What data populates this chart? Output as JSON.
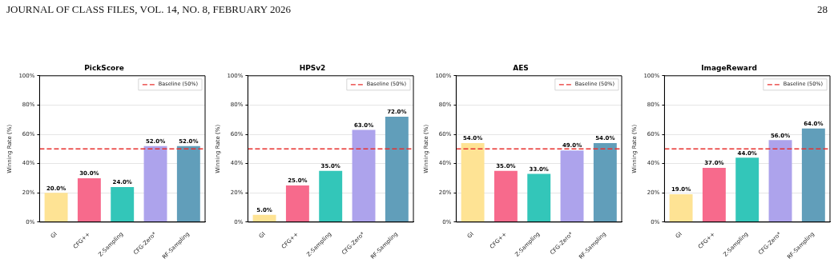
{
  "chart_data": [
    {
      "type": "bar",
      "title": "PickScore",
      "ylabel": "Winning Rate (%)",
      "annotations": [
        "JOURNAL OF CLASS FILES, VOL. 14, NO. 8, FEBRUARY 2026",
        "28"
      ],
      "categories": [
        "GI",
        "CFG++",
        "Z-Sampling",
        "CFG-Zero*",
        "RF-Sampling"
      ],
      "values": [
        20,
        30,
        24,
        52,
        52
      ],
      "value_labels": [
        "20.0%",
        "30.0%",
        "24.0%",
        "52.0%",
        "52.0%"
      ],
      "colors": [
        "#fee394",
        "#f76a8c",
        "#33c6b9",
        "#ada3ec",
        "#619eba"
      ],
      "ylim": [
        0,
        100
      ],
      "yticks": [
        {
          "value": 0,
          "label": "0%"
        },
        {
          "value": 20,
          "label": "20%"
        },
        {
          "value": 40,
          "label": "40%"
        },
        {
          "value": 60,
          "label": "60%"
        },
        {
          "value": 80,
          "label": "80%"
        },
        {
          "value": 100,
          "label": "100%"
        }
      ],
      "grid": "y",
      "legend": "top right",
      "ref_lines": [
        {
          "axis": "y",
          "value": 50,
          "label": "Baseline (50%)",
          "color": "#e8302e",
          "line_style": "dashed"
        }
      ]
    },
    {
      "type": "bar",
      "title": "HPSv2",
      "ylabel": "Winning Rate (%)",
      "categories": [
        "GI",
        "CFG++",
        "Z-Sampling",
        "CFG-Zero*",
        "RF-Sampling"
      ],
      "values": [
        5,
        25,
        35,
        63,
        72
      ],
      "value_labels": [
        "5.0%",
        "25.0%",
        "35.0%",
        "63.0%",
        "72.0%"
      ],
      "colors": [
        "#fee394",
        "#f76a8c",
        "#33c6b9",
        "#ada3ec",
        "#619eba"
      ],
      "ylim": [
        0,
        100
      ],
      "yticks": [
        {
          "value": 0,
          "label": "0%"
        },
        {
          "value": 20,
          "label": "20%"
        },
        {
          "value": 40,
          "label": "40%"
        },
        {
          "value": 60,
          "label": "60%"
        },
        {
          "value": 80,
          "label": "80%"
        },
        {
          "value": 100,
          "label": "100%"
        }
      ],
      "grid": "y",
      "legend": "top right",
      "ref_lines": [
        {
          "axis": "y",
          "value": 50,
          "label": "Baseline (50%)",
          "color": "#e8302e",
          "line_style": "dashed"
        }
      ]
    },
    {
      "type": "bar",
      "title": "AES",
      "ylabel": "Winning Rate (%)",
      "categories": [
        "GI",
        "CFG++",
        "Z-Sampling",
        "CFG-Zero*",
        "RF-Sampling"
      ],
      "values": [
        54,
        35,
        33,
        49,
        54
      ],
      "value_labels": [
        "54.0%",
        "35.0%",
        "33.0%",
        "49.0%",
        "54.0%"
      ],
      "colors": [
        "#fee394",
        "#f76a8c",
        "#33c6b9",
        "#ada3ec",
        "#619eba"
      ],
      "ylim": [
        0,
        100
      ],
      "yticks": [
        {
          "value": 0,
          "label": "0%"
        },
        {
          "value": 20,
          "label": "20%"
        },
        {
          "value": 40,
          "label": "40%"
        },
        {
          "value": 60,
          "label": "60%"
        },
        {
          "value": 80,
          "label": "80%"
        },
        {
          "value": 100,
          "label": "100%"
        }
      ],
      "grid": "y",
      "legend": "top right",
      "ref_lines": [
        {
          "axis": "y",
          "value": 50,
          "label": "Baseline (50%)",
          "color": "#e8302e",
          "line_style": "dashed"
        }
      ]
    },
    {
      "type": "bar",
      "title": "ImageReward",
      "ylabel": "Winning Rate (%)",
      "categories": [
        "GI",
        "CFG++",
        "Z-Sampling",
        "CFG-Zero*",
        "RF-Sampling"
      ],
      "values": [
        19,
        37,
        44,
        56,
        64
      ],
      "value_labels": [
        "19.0%",
        "37.0%",
        "44.0%",
        "56.0%",
        "64.0%"
      ],
      "colors": [
        "#fee394",
        "#f76a8c",
        "#33c6b9",
        "#ada3ec",
        "#619eba"
      ],
      "ylim": [
        0,
        100
      ],
      "yticks": [
        {
          "value": 0,
          "label": "0%"
        },
        {
          "value": 20,
          "label": "20%"
        },
        {
          "value": 40,
          "label": "40%"
        },
        {
          "value": 60,
          "label": "60%"
        },
        {
          "value": 80,
          "label": "80%"
        },
        {
          "value": 100,
          "label": "100%"
        }
      ],
      "grid": "y",
      "legend": "top right",
      "ref_lines": [
        {
          "axis": "y",
          "value": 50,
          "label": "Baseline (50%)",
          "color": "#e8302e",
          "line_style": "dashed"
        }
      ]
    }
  ]
}
